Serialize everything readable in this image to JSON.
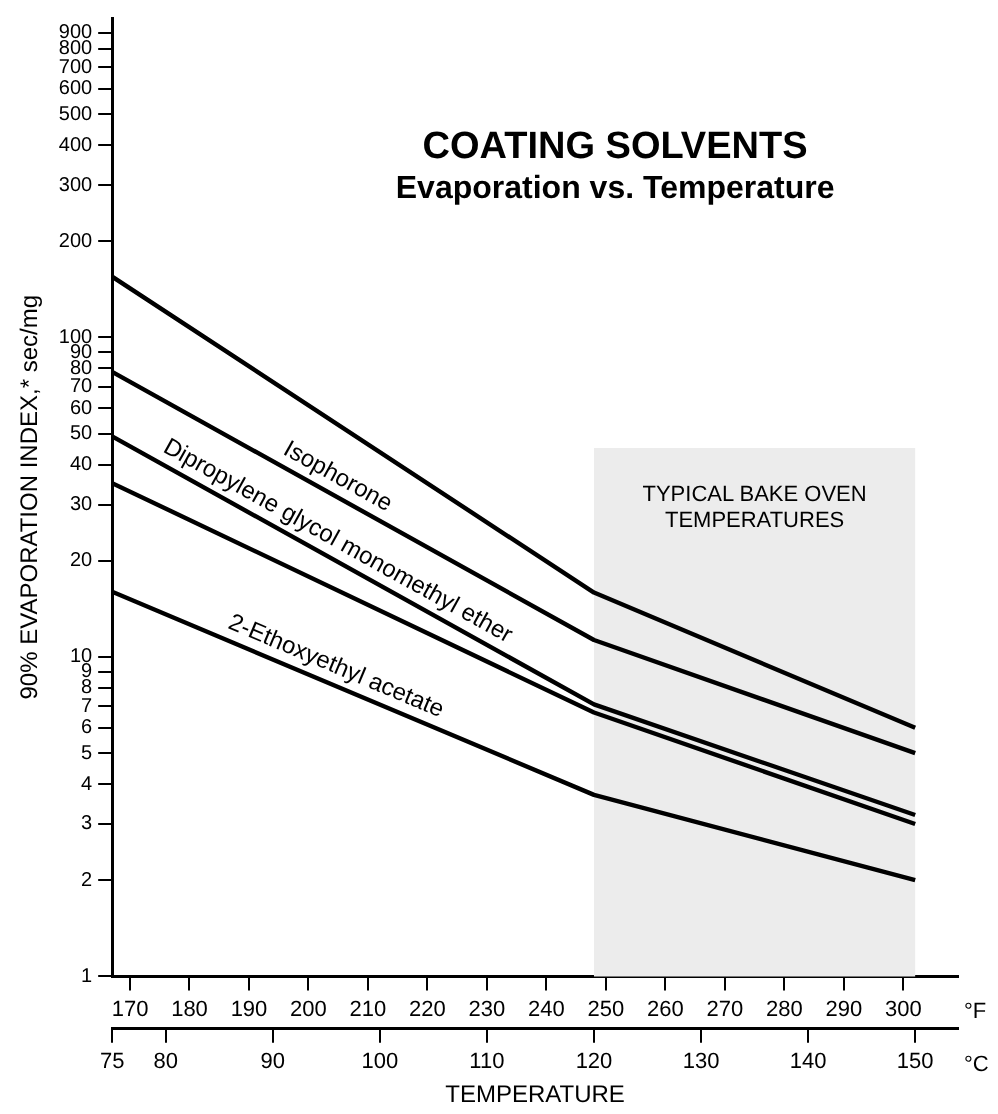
{
  "chart_data": {
    "type": "line",
    "title": "COATING SOLVENTS",
    "subtitle": "Evaporation vs. Temperature",
    "xlabel": "TEMPERATURE",
    "ylabel": "90% EVAPORATION INDEX,* sec/mg",
    "x": [
      75,
      120,
      150
    ],
    "series": [
      {
        "color": "#000000",
        "values": [
          155,
          15.9,
          6
        ]
      },
      {
        "name": "Isophorone",
        "color": "#000000",
        "values": [
          78,
          11.3,
          5
        ]
      },
      {
        "name": "Dipropylene glycol monomethyl ether",
        "color": "#000000",
        "values": [
          49,
          7.1,
          3.2
        ]
      },
      {
        "color": "#000000",
        "values": [
          35,
          6.7,
          3.0
        ]
      },
      {
        "name": "2-Ethoxyethyl acetate",
        "color": "#000000",
        "values": [
          16,
          3.7,
          2.0
        ]
      }
    ],
    "xlim": [
      75,
      154
    ],
    "xticks": [
      75,
      80,
      90,
      100,
      110,
      120,
      130,
      140,
      150
    ],
    "x2lim": [
      167,
      309.2
    ],
    "x2ticks": [
      170,
      180,
      190,
      200,
      210,
      220,
      230,
      240,
      250,
      260,
      270,
      280,
      290,
      300
    ],
    "ylim": [
      1,
      1000
    ],
    "yticks": [
      1,
      2,
      3,
      4,
      5,
      6,
      7,
      8,
      9,
      10,
      20,
      30,
      40,
      50,
      60,
      70,
      80,
      90,
      100,
      200,
      300,
      400,
      500,
      600,
      700,
      800,
      900
    ],
    "log": "y",
    "grid": false,
    "legend": false,
    "marker": "none",
    "line_style": "solid",
    "bands": [
      {
        "axis": "x",
        "from": 120,
        "to": 150,
        "label": "TYPICAL BAKE OVEN TEMPERATURES",
        "color": "#ececec"
      }
    ],
    "annotations": [
      "°F",
      "°C"
    ]
  }
}
